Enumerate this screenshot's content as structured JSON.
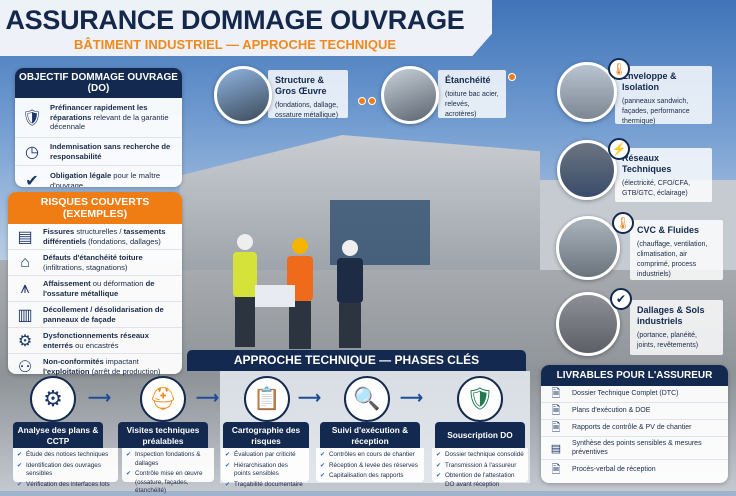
{
  "header": {
    "title": "ASSURANCE DOMMAGE OUVRAGE",
    "subtitle": "BÂTIMENT INDUSTRIEL — APPROCHE TECHNIQUE"
  },
  "objectif": {
    "title": "OBJECTIF DOMMAGE OUVRAGE (DO)",
    "items": [
      {
        "icon": "shield-check-icon",
        "bold": "Préfinancer rapidement les réparations",
        "text": " relevant de la garantie décennale"
      },
      {
        "icon": "clock-icon",
        "bold": "Indemnisation sans recherche de responsabilité",
        "text": ""
      },
      {
        "icon": "check-circle-icon",
        "bold": "Obligation légale",
        "text": " pour le maître d'ouvrage"
      }
    ]
  },
  "risques": {
    "title": "RISQUES COUVERTS (EXEMPLES)",
    "items": [
      {
        "icon": "cracked-plan-icon",
        "bold": "Fissures",
        "text": " structurelles / ",
        "bold2": "tassements différentiels",
        "text2": " (fondations, dallages)"
      },
      {
        "icon": "roof-icon",
        "bold": "Défauts d'étanchéité toiture",
        "text": " (infiltrations, stagnations)",
        "bold2": "",
        "text2": ""
      },
      {
        "icon": "steel-frame-icon",
        "bold": "Affaissement",
        "text": " ou déformation ",
        "bold2": "de l'ossature métallique",
        "text2": ""
      },
      {
        "icon": "facade-panel-icon",
        "bold": "Décollement / désolidarisation de panneaux de façade",
        "text": "",
        "bold2": "",
        "text2": ""
      },
      {
        "icon": "network-gear-icon",
        "bold": "Dysfonctionnements réseaux enterrés",
        "text": " ou encastrés",
        "bold2": "",
        "text2": ""
      },
      {
        "icon": "people-gear-icon",
        "bold": "Non-conformités",
        "text": " impactant ",
        "bold2": "l'exploitation",
        "text2": " (arrêt de production)"
      }
    ]
  },
  "domains": [
    {
      "title": "Structure & Gros Œuvre",
      "desc": "(fondations, dallage, ossature métallique)",
      "icon": "steel-structure-photo"
    },
    {
      "title": "Étanchéité",
      "desc": "(toiture bac acier, relevés, acrotères)",
      "icon": "roof-membrane-photo"
    },
    {
      "title": "Enveloppe & Isolation",
      "desc": "(panneaux sandwich, façades, performance thermique)",
      "icon": "thermometer-icon"
    },
    {
      "title": "Réseaux Techniques",
      "desc": "(électricité, CFO/CFA, GTB/GTC, éclairage)",
      "icon": "lightning-icon"
    },
    {
      "title": "CVC & Fluides",
      "desc": "(chauffage, ventilation, climatisation, air comprimé, process industriels)",
      "icon": "thermometer-icon"
    },
    {
      "title": "Dallages & Sols industriels",
      "desc": "(portance, planéité, joints, revêtements)",
      "icon": "shield-check-icon"
    }
  ],
  "phases": {
    "title": "APPROCHE TECHNIQUE — PHASES CLÉS",
    "items": [
      {
        "label": "Analyse des plans & CCTP",
        "icon": "blueprint-gear-icon",
        "bullets": [
          "Étude des notices techniques",
          "Identification des ouvrages sensibles",
          "Vérification des interfaces lots"
        ]
      },
      {
        "label": "Visites techniques préalables",
        "icon": "hard-hat-icon",
        "bullets": [
          "Inspection fondations & dallages",
          "Contrôle mise en œuvre (ossature, façades, étanchéité)"
        ]
      },
      {
        "label": "Cartographie des risques",
        "icon": "clipboard-checklist-icon",
        "bullets": [
          "Évaluation par criticité",
          "Hiérarchisation des points sensibles",
          "Traçabilité documentaire"
        ]
      },
      {
        "label": "Suivi d'exécution & réception",
        "icon": "magnifier-icon",
        "bullets": [
          "Contrôles en cours de chantier",
          "Réception & levée des réserves",
          "Capitalisation des rapports"
        ]
      },
      {
        "label": "Souscription DO",
        "icon": "shield-check-icon",
        "bullets": [
          "Dossier technique consolidé",
          "Transmission à l'assureur",
          "Obtention de l'attestation DO avant réception"
        ]
      }
    ]
  },
  "livrables": {
    "title": "LIVRABLES POUR L'ASSUREUR",
    "items": [
      "Dossier Technique Complet (DTC)",
      "Plans d'exécution & DOE",
      "Rapports de contrôle & PV de chantier",
      "Synthèse des points sensibles & mesures préventives",
      "Procès-verbal de réception"
    ]
  },
  "colors": {
    "navy": "#13294f",
    "orange": "#f07c14",
    "accent_blue": "#2a66b8"
  }
}
